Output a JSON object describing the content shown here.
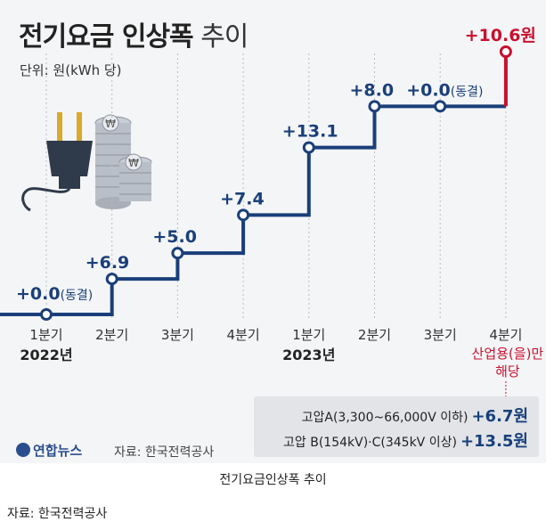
{
  "title_bold": "전기요금 인상폭",
  "title_light": "추이",
  "unit_label": "단위: 원(kWh 당)",
  "chart_data": {
    "type": "line",
    "step": true,
    "title": "전기요금 인상폭 추이",
    "ylabel": "단위: 원(kWh 당)",
    "categories": [
      "1분기",
      "2분기",
      "3분기",
      "4분기",
      "1분기",
      "2분기",
      "3분기",
      "4분기"
    ],
    "year_labels": [
      {
        "index": 0,
        "label": "2022년"
      },
      {
        "index": 4,
        "label": "2023년"
      }
    ],
    "cumulative": [
      0.0,
      6.9,
      11.9,
      19.3,
      32.4,
      40.4,
      40.4,
      51.0
    ],
    "labels": [
      "+0.0",
      "+6.9",
      "+5.0",
      "+7.4",
      "+13.1",
      "+8.0",
      "+0.0",
      "+10.6원"
    ],
    "label_suffix": [
      "(동결)",
      "",
      "",
      "",
      "",
      "",
      "(동결)",
      ""
    ],
    "highlight_index": 7,
    "highlight_note": [
      "산업용(을)만",
      "해당"
    ],
    "colors": {
      "line": "#1a3f7a",
      "highlight": "#c8102e"
    }
  },
  "note": {
    "rows": [
      {
        "label": "고압A(3,300~66,000V 이하)",
        "value": "+6.7원"
      },
      {
        "label": "고압 B(154kV)·C(345kV 이상)",
        "value": "+13.5원"
      }
    ]
  },
  "logo_text": "연합뉴스",
  "source_inner": "자료: 한국전력공사",
  "caption": "전기요금인상폭 추이",
  "source_outer": "자료:   한국전력공사"
}
